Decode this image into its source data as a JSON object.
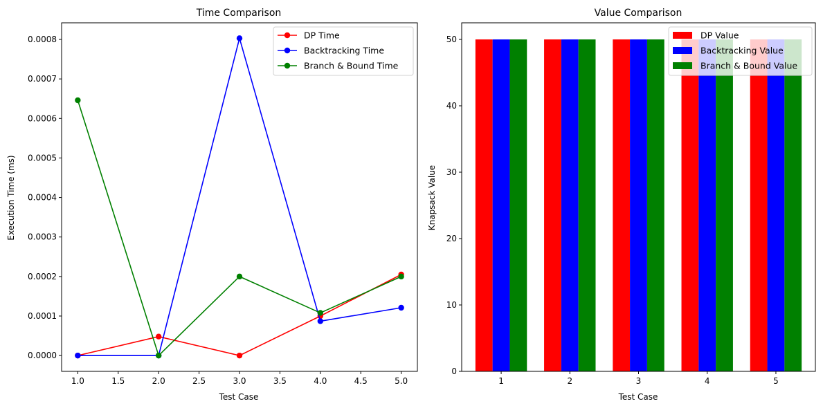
{
  "chart_data": [
    {
      "type": "line",
      "title": "Time Comparison",
      "xlabel": "Test Case",
      "ylabel": "Execution Time (ms)",
      "x": [
        1,
        2,
        3,
        4,
        5
      ],
      "xlim": [
        0.8,
        5.2
      ],
      "ylim": [
        -4e-05,
        0.000842
      ],
      "xticks": [
        1.0,
        1.5,
        2.0,
        2.5,
        3.0,
        3.5,
        4.0,
        4.5,
        5.0
      ],
      "xtick_labels": [
        "1.0",
        "1.5",
        "2.0",
        "2.5",
        "3.0",
        "3.5",
        "4.0",
        "4.5",
        "5.0"
      ],
      "yticks": [
        0,
        0.0001,
        0.0002,
        0.0003,
        0.0004,
        0.0005,
        0.0006,
        0.0007,
        0.0008
      ],
      "ytick_labels": [
        "0.0000",
        "0.0001",
        "0.0002",
        "0.0003",
        "0.0004",
        "0.0005",
        "0.0006",
        "0.0007",
        "0.0008"
      ],
      "grid": false,
      "legend": "top-right",
      "series": [
        {
          "name": "DP Time",
          "color": "#ff0000",
          "values": [
            0.0,
            4.8e-05,
            0.0,
            0.0001,
            0.000205
          ]
        },
        {
          "name": "Backtracking Time",
          "color": "#0000ff",
          "values": [
            0.0,
            0.0,
            0.000803,
            8.7e-05,
            0.000121
          ]
        },
        {
          "name": "Branch & Bound Time",
          "color": "#008000",
          "values": [
            0.000646,
            0.0,
            0.0002,
            0.000108,
            0.0002
          ]
        }
      ]
    },
    {
      "type": "bar",
      "title": "Value Comparison",
      "xlabel": "Test Case",
      "ylabel": "Knapsack Value",
      "categories": [
        "1",
        "2",
        "3",
        "4",
        "5"
      ],
      "ylim": [
        0,
        52.5
      ],
      "yticks": [
        0,
        10,
        20,
        30,
        40,
        50
      ],
      "ytick_labels": [
        "0",
        "10",
        "20",
        "30",
        "40",
        "50"
      ],
      "grid": false,
      "legend": "top-right",
      "series": [
        {
          "name": "DP Value",
          "color": "#ff0000",
          "values": [
            50,
            50,
            50,
            50,
            50
          ]
        },
        {
          "name": "Backtracking Value",
          "color": "#0000ff",
          "values": [
            50,
            50,
            50,
            50,
            50
          ]
        },
        {
          "name": "Branch & Bound Value",
          "color": "#008000",
          "values": [
            50,
            50,
            50,
            50,
            50
          ]
        }
      ]
    }
  ]
}
